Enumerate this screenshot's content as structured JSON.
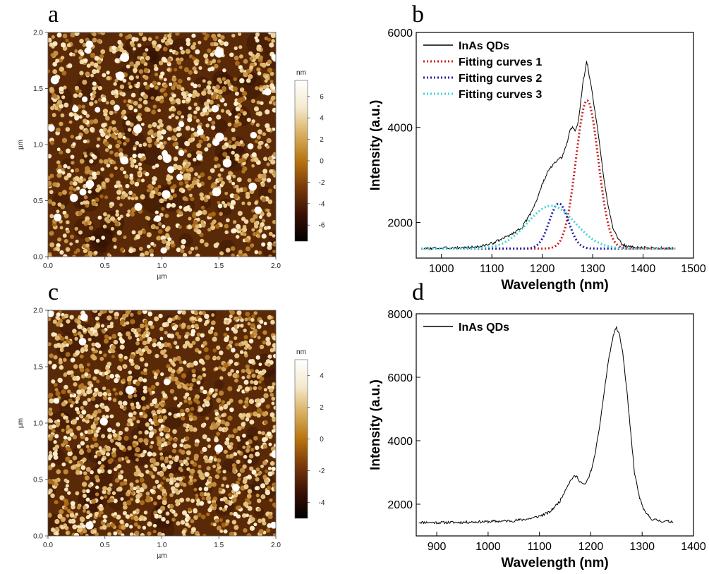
{
  "panel_letters": {
    "a": "a",
    "b": "b",
    "c": "c",
    "d": "d"
  },
  "chart_data": [
    {
      "id": "a",
      "type": "heatmap",
      "subtype": "AFM topography image",
      "xlabel": "µm",
      "ylabel": "µm",
      "xlim": [
        0,
        2.0
      ],
      "ylim": [
        0,
        2.0
      ],
      "xticks": [
        "0.0",
        "0.5",
        "1.0",
        "1.5",
        "2.0"
      ],
      "yticks": [
        "0.0",
        "0.5",
        "1.0",
        "1.5",
        "2.0"
      ],
      "colorbar": {
        "label": "nm",
        "range": [
          -7.5,
          7.5
        ],
        "ticks": [
          "6",
          "4",
          "2",
          "0",
          "-2",
          "-4",
          "-6"
        ],
        "colors": [
          "#000000",
          "#3a1005",
          "#7a3a0a",
          "#b8740f",
          "#d9b060",
          "#f5ead0",
          "#ffffff"
        ]
      },
      "dot_density": 1350,
      "large_dots": 40
    },
    {
      "id": "b",
      "type": "line",
      "xlabel": "Wavelength (nm)",
      "ylabel": "Intensity (a.u.)",
      "xlim": [
        950,
        1500
      ],
      "ylim": [
        1250,
        6000
      ],
      "xticks": [
        1000,
        1100,
        1200,
        1300,
        1400,
        1500
      ],
      "yticks": [
        2000,
        4000,
        6000
      ],
      "legend_position": "top-left",
      "grid": false,
      "series": [
        {
          "name": "InAs QDs",
          "style": "solid",
          "color": "#000000",
          "points": [
            [
              965,
              1450
            ],
            [
              1000,
              1460
            ],
            [
              1050,
              1470
            ],
            [
              1080,
              1500
            ],
            [
              1100,
              1560
            ],
            [
              1120,
              1650
            ],
            [
              1140,
              1760
            ],
            [
              1160,
              1900
            ],
            [
              1175,
              2150
            ],
            [
              1190,
              2500
            ],
            [
              1200,
              2800
            ],
            [
              1210,
              3050
            ],
            [
              1220,
              3200
            ],
            [
              1230,
              3300
            ],
            [
              1240,
              3380
            ],
            [
              1250,
              3700
            ],
            [
              1255,
              3950
            ],
            [
              1260,
              4000
            ],
            [
              1265,
              3930
            ],
            [
              1270,
              4050
            ],
            [
              1275,
              4400
            ],
            [
              1280,
              4900
            ],
            [
              1285,
              5200
            ],
            [
              1288,
              5380
            ],
            [
              1290,
              5300
            ],
            [
              1293,
              5100
            ],
            [
              1298,
              4800
            ],
            [
              1303,
              4450
            ],
            [
              1310,
              3950
            ],
            [
              1320,
              3100
            ],
            [
              1330,
              2400
            ],
            [
              1340,
              1900
            ],
            [
              1350,
              1650
            ],
            [
              1360,
              1520
            ],
            [
              1380,
              1480
            ],
            [
              1400,
              1470
            ],
            [
              1430,
              1460
            ],
            [
              1460,
              1450
            ]
          ]
        },
        {
          "name": "Fitting curves 1",
          "style": "dotted",
          "color": "#cc1f1f",
          "peak": {
            "center": 1289,
            "height": 3120,
            "width": 22,
            "baseline": 1450
          }
        },
        {
          "name": "Fitting curves 2",
          "style": "dotted",
          "color": "#1f1fa8",
          "peak": {
            "center": 1233,
            "height": 950,
            "width": 19,
            "baseline": 1450
          }
        },
        {
          "name": "Fitting curves 3",
          "style": "dotted",
          "color": "#3fd6d6",
          "peak": {
            "center": 1218,
            "height": 900,
            "width": 47,
            "baseline": 1450
          }
        }
      ]
    },
    {
      "id": "c",
      "type": "heatmap",
      "subtype": "AFM topography image",
      "xlabel": "µm",
      "ylabel": "µm",
      "xlim": [
        0,
        2.0
      ],
      "ylim": [
        0,
        2.0
      ],
      "xticks": [
        "0.0",
        "0.5",
        "1.0",
        "1.5",
        "2.0"
      ],
      "yticks": [
        "0.0",
        "0.5",
        "1.0",
        "1.5",
        "2.0"
      ],
      "colorbar": {
        "label": "nm",
        "range": [
          -5,
          5
        ],
        "ticks": [
          "4",
          "2",
          "0",
          "-2",
          "-4"
        ],
        "colors": [
          "#000000",
          "#3a1005",
          "#7a3a0a",
          "#b8740f",
          "#d9b060",
          "#f5ead0",
          "#ffffff"
        ]
      },
      "dot_density": 1650,
      "large_dots": 12
    },
    {
      "id": "d",
      "type": "line",
      "xlabel": "Wavelength (nm)",
      "ylabel": "Intensity (a.u.)",
      "xlim": [
        860,
        1400
      ],
      "ylim": [
        1000,
        8000
      ],
      "xticks": [
        900,
        1000,
        1100,
        1200,
        1300,
        1400
      ],
      "yticks": [
        2000,
        4000,
        6000,
        8000
      ],
      "legend_position": "top-left",
      "grid": false,
      "series": [
        {
          "name": "InAs QDs",
          "style": "solid",
          "color": "#000000",
          "points": [
            [
              865,
              1430
            ],
            [
              900,
              1420
            ],
            [
              950,
              1430
            ],
            [
              1000,
              1450
            ],
            [
              1050,
              1480
            ],
            [
              1080,
              1540
            ],
            [
              1100,
              1620
            ],
            [
              1120,
              1750
            ],
            [
              1140,
              2100
            ],
            [
              1155,
              2600
            ],
            [
              1165,
              2850
            ],
            [
              1172,
              2880
            ],
            [
              1180,
              2700
            ],
            [
              1188,
              2600
            ],
            [
              1195,
              2800
            ],
            [
              1205,
              3300
            ],
            [
              1215,
              4200
            ],
            [
              1225,
              5400
            ],
            [
              1235,
              6600
            ],
            [
              1245,
              7400
            ],
            [
              1250,
              7550
            ],
            [
              1255,
              7400
            ],
            [
              1262,
              6800
            ],
            [
              1270,
              5600
            ],
            [
              1278,
              4200
            ],
            [
              1285,
              3000
            ],
            [
              1295,
              2200
            ],
            [
              1305,
              1750
            ],
            [
              1320,
              1520
            ],
            [
              1340,
              1460
            ],
            [
              1360,
              1450
            ]
          ]
        }
      ]
    }
  ]
}
